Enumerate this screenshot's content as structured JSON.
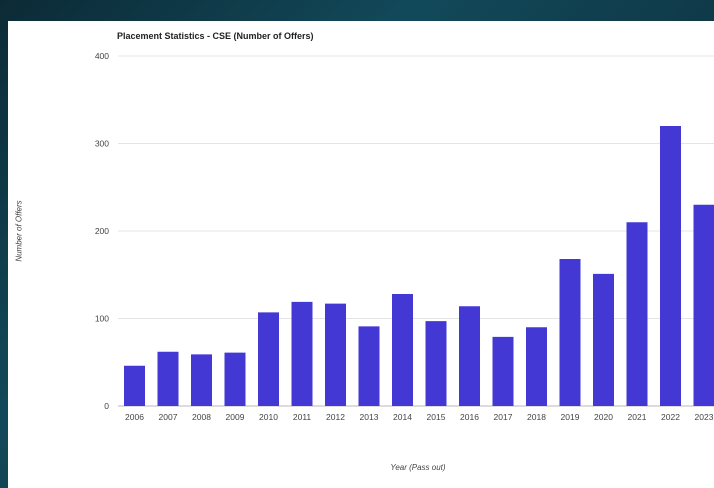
{
  "chart_data": {
    "type": "bar",
    "title": "Placement Statistics - CSE (Number of Offers)",
    "xlabel": "Year (Pass out)",
    "ylabel": "Number of Offers",
    "categories": [
      "2006",
      "2007",
      "2008",
      "2009",
      "2010",
      "2011",
      "2012",
      "2013",
      "2014",
      "2015",
      "2016",
      "2017",
      "2018",
      "2019",
      "2020",
      "2021",
      "2022",
      "2023"
    ],
    "values": [
      46,
      62,
      59,
      61,
      107,
      119,
      117,
      91,
      128,
      97,
      114,
      79,
      90,
      168,
      151,
      210,
      320,
      230
    ],
    "ylim": [
      0,
      400
    ],
    "yticks": [
      0,
      100,
      200,
      300,
      400
    ],
    "grid": true,
    "bar_color": "#4338d4"
  }
}
